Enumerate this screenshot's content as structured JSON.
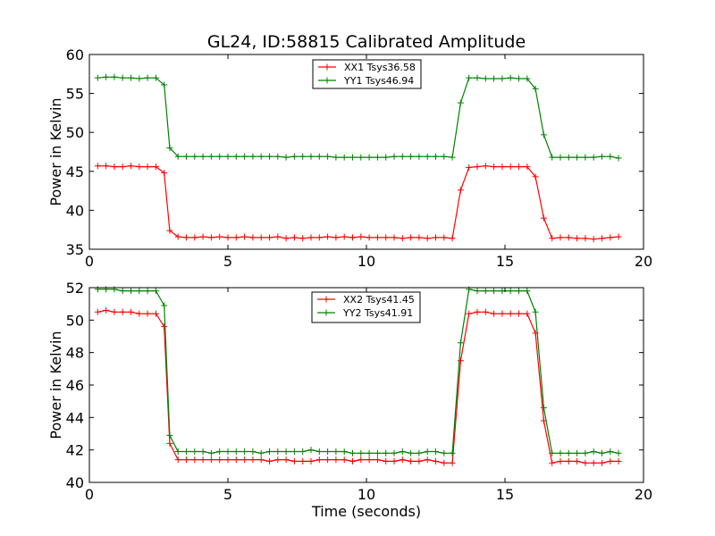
{
  "figure": {
    "title": "GL24, ID:58815 Calibrated Amplitude",
    "xlabel": "Time (seconds)"
  },
  "colors": {
    "red": "#ff0000",
    "green": "#008000"
  },
  "chart_data": [
    {
      "type": "line",
      "ylabel": "Power in Kelvin",
      "xlim": [
        0,
        20
      ],
      "ylim": [
        35,
        60
      ],
      "xticks": [
        0,
        5,
        10,
        15,
        20
      ],
      "yticks": [
        35,
        40,
        45,
        50,
        55,
        60
      ],
      "grid": false,
      "legend": "top-center",
      "series": [
        {
          "name": "XX1 Tsys36.58",
          "color": "#ff0000",
          "x": [
            0.3,
            0.6,
            0.9,
            1.2,
            1.5,
            1.8,
            2.1,
            2.4,
            2.7,
            2.9,
            3.2,
            3.5,
            3.8,
            4.1,
            4.4,
            4.7,
            5.0,
            5.3,
            5.6,
            5.9,
            6.2,
            6.5,
            6.8,
            7.1,
            7.4,
            7.7,
            8.0,
            8.3,
            8.6,
            8.9,
            9.2,
            9.5,
            9.8,
            10.1,
            10.4,
            10.7,
            11.0,
            11.3,
            11.6,
            11.9,
            12.2,
            12.5,
            12.8,
            13.1,
            13.4,
            13.7,
            14.0,
            14.3,
            14.6,
            14.9,
            15.2,
            15.5,
            15.8,
            16.1,
            16.4,
            16.7,
            17.0,
            17.3,
            17.6,
            17.9,
            18.2,
            18.5,
            18.8,
            19.1
          ],
          "y": [
            45.7,
            45.7,
            45.6,
            45.6,
            45.7,
            45.6,
            45.6,
            45.6,
            44.8,
            37.4,
            36.6,
            36.5,
            36.5,
            36.6,
            36.5,
            36.6,
            36.5,
            36.5,
            36.6,
            36.5,
            36.5,
            36.5,
            36.6,
            36.4,
            36.5,
            36.4,
            36.5,
            36.5,
            36.6,
            36.5,
            36.6,
            36.5,
            36.6,
            36.5,
            36.5,
            36.5,
            36.5,
            36.4,
            36.5,
            36.5,
            36.4,
            36.5,
            36.5,
            36.4,
            42.6,
            45.5,
            45.6,
            45.7,
            45.6,
            45.6,
            45.6,
            45.6,
            45.6,
            44.3,
            39.0,
            36.4,
            36.5,
            36.5,
            36.4,
            36.4,
            36.3,
            36.4,
            36.5,
            36.6
          ]
        },
        {
          "name": "YY1 Tsys46.94",
          "color": "#008000",
          "x": [
            0.3,
            0.6,
            0.9,
            1.2,
            1.5,
            1.8,
            2.1,
            2.4,
            2.7,
            2.9,
            3.2,
            3.5,
            3.8,
            4.1,
            4.4,
            4.7,
            5.0,
            5.3,
            5.6,
            5.9,
            6.2,
            6.5,
            6.8,
            7.1,
            7.4,
            7.7,
            8.0,
            8.3,
            8.6,
            8.9,
            9.2,
            9.5,
            9.8,
            10.1,
            10.4,
            10.7,
            11.0,
            11.3,
            11.6,
            11.9,
            12.2,
            12.5,
            12.8,
            13.1,
            13.4,
            13.7,
            14.0,
            14.3,
            14.6,
            14.9,
            15.2,
            15.5,
            15.8,
            16.1,
            16.4,
            16.7,
            17.0,
            17.3,
            17.6,
            17.9,
            18.2,
            18.5,
            18.8,
            19.1
          ],
          "y": [
            57.0,
            57.1,
            57.1,
            57.0,
            57.0,
            56.9,
            57.0,
            57.0,
            56.1,
            48.0,
            46.9,
            46.9,
            46.9,
            46.9,
            46.9,
            46.9,
            46.9,
            46.9,
            46.9,
            46.9,
            46.9,
            46.9,
            46.9,
            46.8,
            46.9,
            46.9,
            46.9,
            46.9,
            46.9,
            46.8,
            46.8,
            46.8,
            46.8,
            46.8,
            46.8,
            46.8,
            46.9,
            46.9,
            46.9,
            46.9,
            46.9,
            46.9,
            46.9,
            46.8,
            53.8,
            57.0,
            57.0,
            56.9,
            56.9,
            56.9,
            57.0,
            56.9,
            56.9,
            55.6,
            49.7,
            46.8,
            46.8,
            46.8,
            46.8,
            46.8,
            46.8,
            46.9,
            46.9,
            46.7
          ]
        }
      ]
    },
    {
      "type": "line",
      "ylabel": "Power in Kelvin",
      "xlim": [
        0,
        20
      ],
      "ylim": [
        40,
        52
      ],
      "xticks": [
        0,
        5,
        10,
        15,
        20
      ],
      "yticks": [
        40,
        42,
        44,
        46,
        48,
        50,
        52
      ],
      "grid": false,
      "legend": "top-center",
      "series": [
        {
          "name": "XX2 Tsys41.45",
          "color": "#ff0000",
          "x": [
            0.3,
            0.6,
            0.9,
            1.2,
            1.5,
            1.8,
            2.1,
            2.4,
            2.7,
            2.9,
            3.2,
            3.5,
            3.8,
            4.1,
            4.4,
            4.7,
            5.0,
            5.3,
            5.6,
            5.9,
            6.2,
            6.5,
            6.8,
            7.1,
            7.4,
            7.7,
            8.0,
            8.3,
            8.6,
            8.9,
            9.2,
            9.5,
            9.8,
            10.1,
            10.4,
            10.7,
            11.0,
            11.3,
            11.6,
            11.9,
            12.2,
            12.5,
            12.8,
            13.1,
            13.4,
            13.7,
            14.0,
            14.3,
            14.6,
            14.9,
            15.2,
            15.5,
            15.8,
            16.1,
            16.4,
            16.7,
            17.0,
            17.3,
            17.6,
            17.9,
            18.2,
            18.5,
            18.8,
            19.1
          ],
          "y": [
            50.5,
            50.6,
            50.5,
            50.5,
            50.5,
            50.4,
            50.4,
            50.4,
            49.6,
            42.4,
            41.4,
            41.4,
            41.4,
            41.4,
            41.4,
            41.4,
            41.4,
            41.4,
            41.4,
            41.4,
            41.4,
            41.3,
            41.4,
            41.4,
            41.3,
            41.3,
            41.3,
            41.4,
            41.4,
            41.4,
            41.4,
            41.3,
            41.4,
            41.4,
            41.4,
            41.3,
            41.3,
            41.4,
            41.3,
            41.3,
            41.4,
            41.3,
            41.2,
            41.2,
            47.5,
            50.4,
            50.5,
            50.5,
            50.4,
            50.4,
            50.4,
            50.4,
            50.4,
            49.2,
            43.8,
            41.2,
            41.3,
            41.3,
            41.3,
            41.2,
            41.2,
            41.2,
            41.3,
            41.3
          ]
        },
        {
          "name": "YY2 Tsys41.91",
          "color": "#008000",
          "x": [
            0.3,
            0.6,
            0.9,
            1.2,
            1.5,
            1.8,
            2.1,
            2.4,
            2.7,
            2.9,
            3.2,
            3.5,
            3.8,
            4.1,
            4.4,
            4.7,
            5.0,
            5.3,
            5.6,
            5.9,
            6.2,
            6.5,
            6.8,
            7.1,
            7.4,
            7.7,
            8.0,
            8.3,
            8.6,
            8.9,
            9.2,
            9.5,
            9.8,
            10.1,
            10.4,
            10.7,
            11.0,
            11.3,
            11.6,
            11.9,
            12.2,
            12.5,
            12.8,
            13.1,
            13.4,
            13.7,
            14.0,
            14.3,
            14.6,
            14.9,
            15.2,
            15.5,
            15.8,
            16.1,
            16.4,
            16.7,
            17.0,
            17.3,
            17.6,
            17.9,
            18.2,
            18.5,
            18.8,
            19.1
          ],
          "y": [
            51.9,
            51.9,
            51.9,
            51.8,
            51.8,
            51.8,
            51.8,
            51.8,
            50.9,
            42.9,
            41.9,
            41.9,
            41.9,
            41.9,
            41.8,
            41.9,
            41.9,
            41.9,
            41.9,
            41.9,
            41.8,
            41.9,
            41.9,
            41.9,
            41.9,
            41.9,
            42.0,
            41.9,
            41.9,
            41.9,
            41.9,
            41.8,
            41.8,
            41.8,
            41.8,
            41.8,
            41.8,
            41.9,
            41.8,
            41.8,
            41.9,
            41.9,
            41.8,
            41.8,
            48.6,
            51.9,
            51.8,
            51.8,
            51.8,
            51.8,
            51.8,
            51.8,
            51.8,
            50.5,
            44.6,
            41.8,
            41.8,
            41.8,
            41.8,
            41.8,
            41.9,
            41.8,
            41.9,
            41.8
          ]
        }
      ]
    }
  ]
}
